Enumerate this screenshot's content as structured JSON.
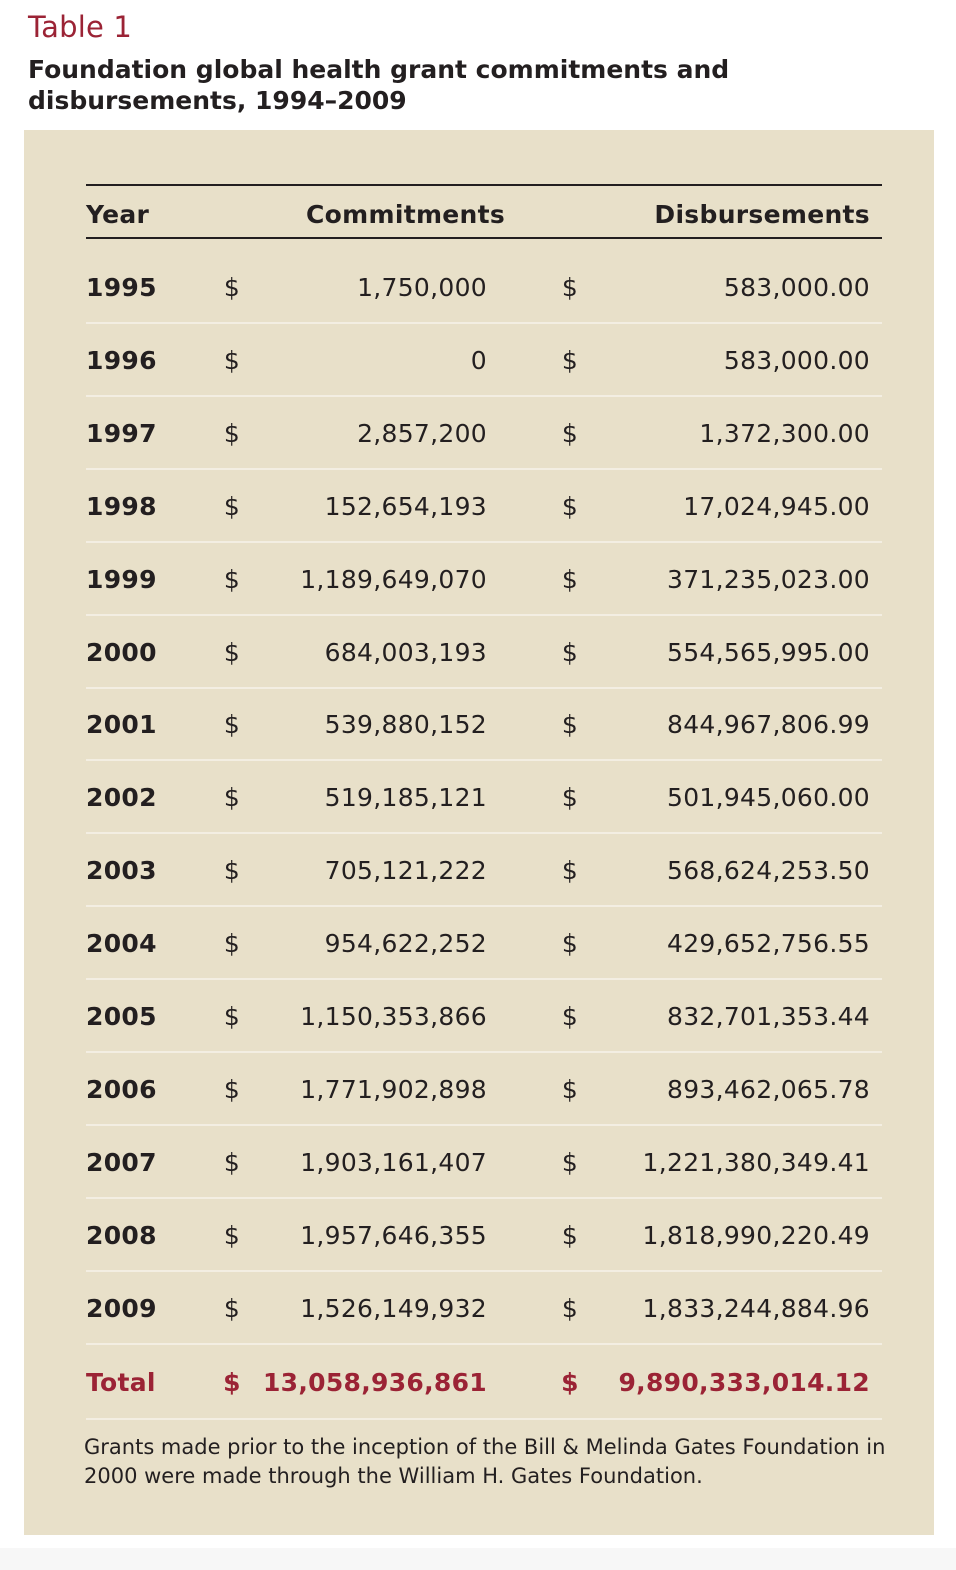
{
  "table_label": "Table 1",
  "table_title": "Foundation global health grant commitments and disbursements, 1994–2009",
  "columns": {
    "year": "Year",
    "commitments": "Commitments",
    "disbursements": "Disbursements"
  },
  "currency_symbol": "$",
  "rows": [
    {
      "year": "1995",
      "commitments": "1,750,000",
      "disbursements": "583,000.00"
    },
    {
      "year": "1996",
      "commitments": "0",
      "disbursements": "583,000.00"
    },
    {
      "year": "1997",
      "commitments": "2,857,200",
      "disbursements": "1,372,300.00"
    },
    {
      "year": "1998",
      "commitments": "152,654,193",
      "disbursements": "17,024,945.00"
    },
    {
      "year": "1999",
      "commitments": "1,189,649,070",
      "disbursements": "371,235,023.00"
    },
    {
      "year": "2000",
      "commitments": "684,003,193",
      "disbursements": "554,565,995.00"
    },
    {
      "year": "2001",
      "commitments": "539,880,152",
      "disbursements": "844,967,806.99"
    },
    {
      "year": "2002",
      "commitments": "519,185,121",
      "disbursements": "501,945,060.00"
    },
    {
      "year": "2003",
      "commitments": "705,121,222",
      "disbursements": "568,624,253.50"
    },
    {
      "year": "2004",
      "commitments": "954,622,252",
      "disbursements": "429,652,756.55"
    },
    {
      "year": "2005",
      "commitments": "1,150,353,866",
      "disbursements": "832,701,353.44"
    },
    {
      "year": "2006",
      "commitments": "1,771,902,898",
      "disbursements": "893,462,065.78"
    },
    {
      "year": "2007",
      "commitments": "1,903,161,407",
      "disbursements": "1,221,380,349.41"
    },
    {
      "year": "2008",
      "commitments": "1,957,646,355",
      "disbursements": "1,818,990,220.49"
    },
    {
      "year": "2009",
      "commitments": "1,526,149,932",
      "disbursements": "1,833,244,884.96"
    }
  ],
  "total": {
    "label": "Total",
    "commitments": "13,058,936,861",
    "disbursements": "9,890,333,014.12"
  },
  "footnote": "Grants made prior to the inception of the Bill & Melinda Gates Foundation in 2000 were made through the William H. Gates Foundation.",
  "colors": {
    "accent": "#9b2335",
    "panel": "#e8e0c9",
    "text": "#231f20"
  }
}
